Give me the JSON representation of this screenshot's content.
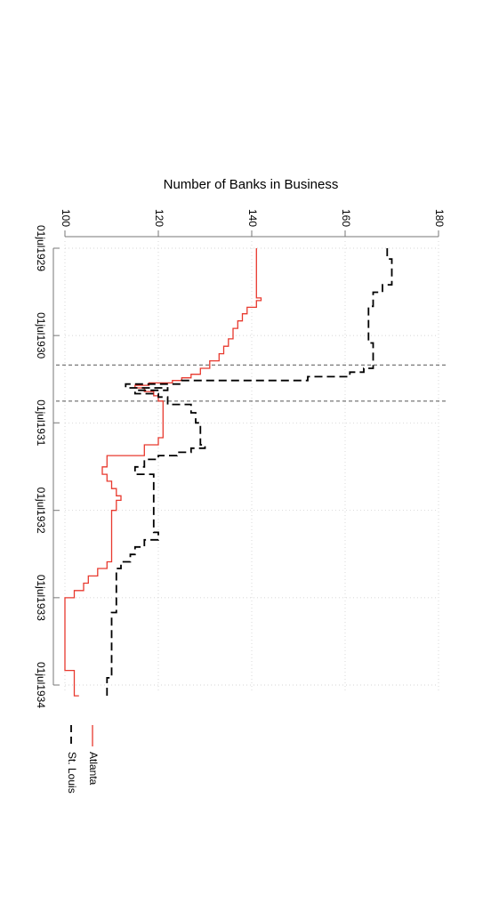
{
  "chart_data": {
    "type": "line",
    "title": "Number of Banks in Business",
    "orientation": "rotated 90 degrees clockwise",
    "xlabel": "",
    "ylabel": "",
    "ylim": [
      100,
      180
    ],
    "yticks": [
      100,
      120,
      140,
      160,
      180
    ],
    "ytick_labels": [
      "100",
      "120",
      "140",
      "160",
      "180"
    ],
    "x_axis_type": "date",
    "xlim": [
      "1929-07-01",
      "1934-07-01"
    ],
    "xticks": [
      "1929-07-01",
      "1930-07-01",
      "1931-07-01",
      "1932-07-01",
      "1933-07-01",
      "1934-07-01"
    ],
    "xtick_labels": [
      "01jul1929",
      "01jul1930",
      "01jul1931",
      "01jul1932",
      "01jul1933",
      "01jul1934"
    ],
    "grid": true,
    "vlines": [
      "1930-11-01",
      "1931-04-01"
    ],
    "legend_position": "bottom",
    "series": [
      {
        "name": "Atlanta",
        "color": "#e8392e",
        "style": "solid",
        "points": [
          [
            "1929-07-01",
            141
          ],
          [
            "1930-01-15",
            141
          ],
          [
            "1930-01-25",
            142
          ],
          [
            "1930-02-05",
            141
          ],
          [
            "1930-03-05",
            139
          ],
          [
            "1930-04-01",
            138
          ],
          [
            "1930-05-01",
            137
          ],
          [
            "1930-06-01",
            136
          ],
          [
            "1930-07-15",
            135
          ],
          [
            "1930-08-15",
            134
          ],
          [
            "1930-09-15",
            133
          ],
          [
            "1930-10-15",
            131
          ],
          [
            "1930-11-15",
            129
          ],
          [
            "1930-12-10",
            127
          ],
          [
            "1930-12-25",
            125
          ],
          [
            "1931-01-05",
            123
          ],
          [
            "1931-01-15",
            118
          ],
          [
            "1931-01-25",
            115
          ],
          [
            "1931-02-05",
            117
          ],
          [
            "1931-02-20",
            119
          ],
          [
            "1931-03-10",
            120
          ],
          [
            "1931-04-01",
            121
          ],
          [
            "1931-08-01",
            121
          ],
          [
            "1931-09-01",
            120
          ],
          [
            "1931-10-01",
            117
          ],
          [
            "1931-11-15",
            109
          ],
          [
            "1932-01-01",
            108
          ],
          [
            "1932-02-01",
            109
          ],
          [
            "1932-03-01",
            110
          ],
          [
            "1932-04-01",
            111
          ],
          [
            "1932-05-01",
            112
          ],
          [
            "1932-05-20",
            111
          ],
          [
            "1932-07-01",
            110
          ],
          [
            "1933-01-01",
            110
          ],
          [
            "1933-02-01",
            109
          ],
          [
            "1933-03-01",
            107
          ],
          [
            "1933-04-01",
            105
          ],
          [
            "1933-05-01",
            104
          ],
          [
            "1933-06-01",
            102
          ],
          [
            "1933-07-01",
            100
          ],
          [
            "1934-01-01",
            100
          ],
          [
            "1934-05-01",
            102
          ],
          [
            "1934-07-01",
            102
          ],
          [
            "1934-08-15",
            103
          ]
        ]
      },
      {
        "name": "St. Louis",
        "color": "#000000",
        "style": "dashed",
        "points": [
          [
            "1929-07-01",
            169
          ],
          [
            "1929-08-15",
            170
          ],
          [
            "1929-11-01",
            170
          ],
          [
            "1929-12-01",
            168
          ],
          [
            "1930-01-01",
            166
          ],
          [
            "1930-03-01",
            165
          ],
          [
            "1930-06-01",
            165
          ],
          [
            "1930-08-01",
            166
          ],
          [
            "1930-10-15",
            166
          ],
          [
            "1930-11-15",
            164
          ],
          [
            "1930-12-01",
            161
          ],
          [
            "1930-12-20",
            152
          ],
          [
            "1931-01-05",
            125
          ],
          [
            "1931-01-20",
            113
          ],
          [
            "1931-01-25",
            113
          ],
          [
            "1931-02-05",
            122
          ],
          [
            "1931-02-15",
            115
          ],
          [
            "1931-03-01",
            120
          ],
          [
            "1931-03-15",
            122
          ],
          [
            "1931-04-15",
            127
          ],
          [
            "1931-05-20",
            128
          ],
          [
            "1931-07-01",
            129
          ],
          [
            "1931-10-01",
            130
          ],
          [
            "1931-10-15",
            127
          ],
          [
            "1931-11-01",
            124
          ],
          [
            "1931-11-15",
            120
          ],
          [
            "1931-12-01",
            117
          ],
          [
            "1932-01-01",
            115
          ],
          [
            "1932-02-01",
            119
          ],
          [
            "1932-06-01",
            119
          ],
          [
            "1932-09-15",
            119
          ],
          [
            "1932-10-01",
            120
          ],
          [
            "1932-11-01",
            117
          ],
          [
            "1932-12-01",
            115
          ],
          [
            "1933-01-01",
            114
          ],
          [
            "1933-02-01",
            112
          ],
          [
            "1933-03-01",
            111
          ],
          [
            "1933-06-01",
            111
          ],
          [
            "1933-09-01",
            110
          ],
          [
            "1934-06-01",
            109
          ],
          [
            "1934-08-15",
            109
          ]
        ]
      }
    ]
  }
}
